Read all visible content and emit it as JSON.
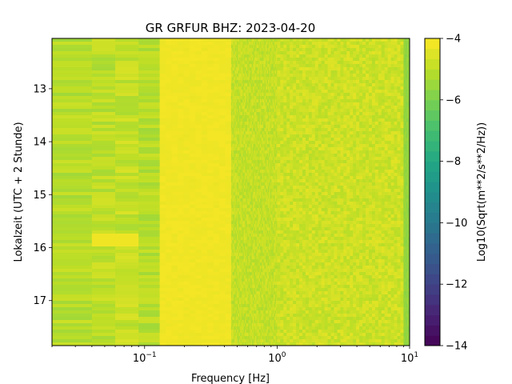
{
  "chart_data": {
    "type": "heatmap",
    "title": "GR GRFUR  BHZ: 2023-04-20",
    "xlabel": "Frequency [Hz]",
    "ylabel": "Lokalzeit (UTC + 2 Stunde)",
    "x_scale": "log",
    "x_ticks": [
      {
        "value": 0.1,
        "base": "10",
        "exp": "−1"
      },
      {
        "value": 1,
        "base": "10",
        "exp": "0"
      },
      {
        "value": 10,
        "base": "10",
        "exp": "1"
      }
    ],
    "xlim": [
      0.02,
      10
    ],
    "y_ticks": [
      "13",
      "14",
      "15",
      "16",
      "17"
    ],
    "ylim": [
      12.05,
      17.85
    ],
    "colorbar": {
      "label": "Log10(Sqrt(m**2/s**2/Hz))",
      "range": [
        -14,
        -4
      ],
      "ticks": [
        "−4",
        "−6",
        "−8",
        "−10",
        "−12",
        "−14"
      ],
      "tick_values": [
        -4,
        -6,
        -8,
        -10,
        -12,
        -14
      ],
      "colormap": "viridis"
    },
    "bands": [
      {
        "f_min": 0.02,
        "f_max": 0.04,
        "level": -5.1
      },
      {
        "f_min": 0.04,
        "f_max": 0.06,
        "level": -5.0
      },
      {
        "f_min": 0.06,
        "f_max": 0.09,
        "level": -4.9
      },
      {
        "f_min": 0.09,
        "f_max": 0.13,
        "level": -5.1
      },
      {
        "f_min": 0.13,
        "f_max": 0.45,
        "level": -4.2
      },
      {
        "f_min": 0.45,
        "f_max": 1.0,
        "level": -4.9
      },
      {
        "f_min": 1.0,
        "f_max": 9.0,
        "level": -4.75
      },
      {
        "f_min": 9.0,
        "f_max": 10.0,
        "level": -5.6
      }
    ],
    "features": [
      {
        "f_min": 0.04,
        "f_max": 0.085,
        "t_min": 15.75,
        "t_max": 16.0,
        "level": -4.2
      }
    ]
  }
}
